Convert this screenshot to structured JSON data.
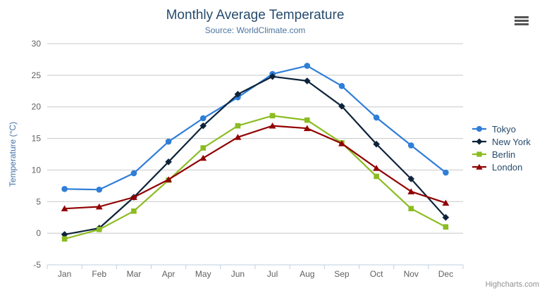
{
  "credits": {
    "label": "Highcharts.com"
  },
  "icons": {
    "export_menu": "hamburger-icon"
  },
  "chart_data": {
    "type": "line",
    "title": "Monthly Average Temperature",
    "subtitle": "Source: WorldClimate.com",
    "xlabel": "",
    "ylabel": "Temperature (°C)",
    "categories": [
      "Jan",
      "Feb",
      "Mar",
      "Apr",
      "May",
      "Jun",
      "Jul",
      "Aug",
      "Sep",
      "Oct",
      "Nov",
      "Dec"
    ],
    "series": [
      {
        "name": "Tokyo",
        "color": "#2f7ed8",
        "marker": "circle",
        "values": [
          7.0,
          6.9,
          9.5,
          14.5,
          18.2,
          21.5,
          25.2,
          26.5,
          23.3,
          18.3,
          13.9,
          9.6
        ]
      },
      {
        "name": "New York",
        "color": "#0d233a",
        "marker": "diamond",
        "values": [
          -0.2,
          0.8,
          5.7,
          11.3,
          17.0,
          22.0,
          24.8,
          24.1,
          20.1,
          14.1,
          8.6,
          2.5
        ]
      },
      {
        "name": "Berlin",
        "color": "#8bbc21",
        "marker": "square",
        "values": [
          -0.9,
          0.6,
          3.5,
          8.4,
          13.5,
          17.0,
          18.6,
          17.9,
          14.3,
          9.0,
          3.9,
          1.0
        ]
      },
      {
        "name": "London",
        "color": "#910000",
        "marker": "triangle",
        "values": [
          3.9,
          4.2,
          5.7,
          8.5,
          11.9,
          15.2,
          17.0,
          16.6,
          14.2,
          10.3,
          6.6,
          4.8
        ]
      }
    ],
    "ylim": [
      -5,
      30
    ],
    "ytick_step": 5,
    "grid": true,
    "legend_position": "right",
    "styles": {
      "grid_color": "#c8c8c8",
      "axis_line_color": "#c0d0e0",
      "axis_label_color": "#606060",
      "axis_title_color": "#4572a7",
      "title_color": "#274b6d",
      "subtitle_color": "#4d759e",
      "credits_color": "#909090"
    }
  }
}
